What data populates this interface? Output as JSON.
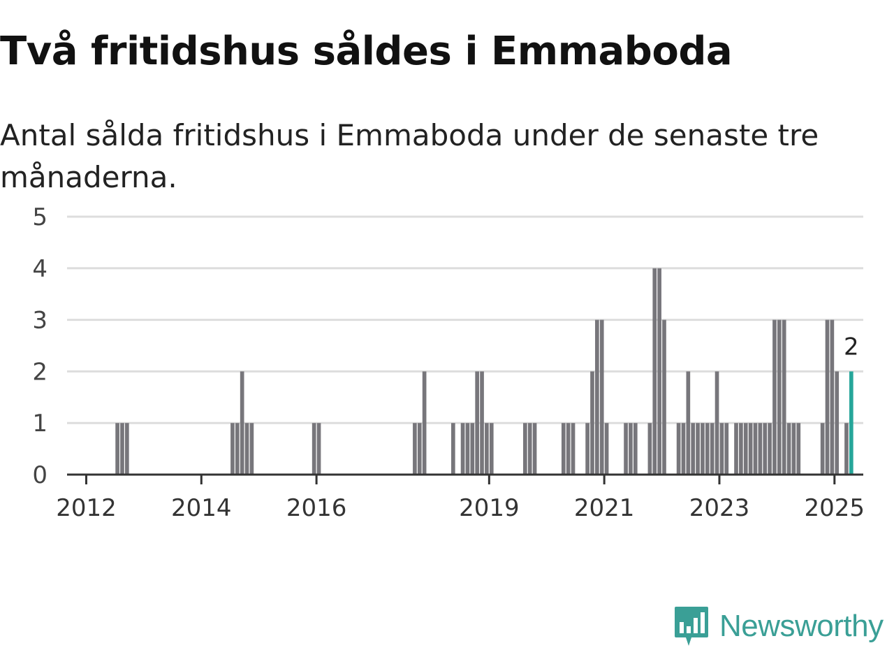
{
  "title": "Två fritidshus såldes i Emmaboda",
  "subtitle": "Antal sålda fritidshus i Emmaboda under de senaste tre månaderna.",
  "brand": {
    "name": "Newsworthy",
    "icon": "newsworthy-logo-icon",
    "color": "#3a9f96"
  },
  "chart_data": {
    "type": "bar",
    "title": "Två fritidshus såldes i Emmaboda",
    "subtitle": "Antal sålda fritidshus i Emmaboda under de senaste tre månaderna.",
    "xlabel": "",
    "ylabel": "",
    "ylim": [
      0,
      5
    ],
    "yticks": [
      0,
      1,
      2,
      3,
      4,
      5
    ],
    "xlim": [
      "2011-09",
      "2025-07"
    ],
    "xticks": [
      {
        "label": "2012",
        "month": "2012-01"
      },
      {
        "label": "2014",
        "month": "2014-01"
      },
      {
        "label": "2016",
        "month": "2016-01"
      },
      {
        "label": "2019",
        "month": "2019-01"
      },
      {
        "label": "2021",
        "month": "2021-01"
      },
      {
        "label": "2023",
        "month": "2023-01"
      },
      {
        "label": "2025",
        "month": "2025-01"
      }
    ],
    "grid": true,
    "bar_color": "#77767b",
    "highlight_color": "#26a69a",
    "highlight_label": "2",
    "series": [
      {
        "values": [
          [
            "2012-07",
            1
          ],
          [
            "2012-08",
            1
          ],
          [
            "2012-09",
            1
          ],
          [
            "2014-07",
            1
          ],
          [
            "2014-08",
            1
          ],
          [
            "2014-09",
            2
          ],
          [
            "2014-10",
            1
          ],
          [
            "2014-11",
            1
          ],
          [
            "2015-12",
            1
          ],
          [
            "2016-01",
            1
          ],
          [
            "2017-09",
            1
          ],
          [
            "2017-10",
            1
          ],
          [
            "2017-11",
            2
          ],
          [
            "2018-05",
            1
          ],
          [
            "2018-07",
            1
          ],
          [
            "2018-08",
            1
          ],
          [
            "2018-09",
            1
          ],
          [
            "2018-10",
            2
          ],
          [
            "2018-11",
            2
          ],
          [
            "2018-12",
            1
          ],
          [
            "2019-01",
            1
          ],
          [
            "2019-08",
            1
          ],
          [
            "2019-09",
            1
          ],
          [
            "2019-10",
            1
          ],
          [
            "2020-04",
            1
          ],
          [
            "2020-05",
            1
          ],
          [
            "2020-06",
            1
          ],
          [
            "2020-09",
            1
          ],
          [
            "2020-10",
            2
          ],
          [
            "2020-11",
            3
          ],
          [
            "2020-12",
            3
          ],
          [
            "2021-01",
            1
          ],
          [
            "2021-05",
            1
          ],
          [
            "2021-06",
            1
          ],
          [
            "2021-07",
            1
          ],
          [
            "2021-10",
            1
          ],
          [
            "2021-11",
            4
          ],
          [
            "2021-12",
            4
          ],
          [
            "2022-01",
            3
          ],
          [
            "2022-04",
            1
          ],
          [
            "2022-05",
            1
          ],
          [
            "2022-06",
            2
          ],
          [
            "2022-07",
            1
          ],
          [
            "2022-08",
            1
          ],
          [
            "2022-09",
            1
          ],
          [
            "2022-10",
            1
          ],
          [
            "2022-11",
            1
          ],
          [
            "2022-12",
            2
          ],
          [
            "2023-01",
            1
          ],
          [
            "2023-02",
            1
          ],
          [
            "2023-04",
            1
          ],
          [
            "2023-05",
            1
          ],
          [
            "2023-06",
            1
          ],
          [
            "2023-07",
            1
          ],
          [
            "2023-08",
            1
          ],
          [
            "2023-09",
            1
          ],
          [
            "2023-10",
            1
          ],
          [
            "2023-11",
            1
          ],
          [
            "2023-12",
            3
          ],
          [
            "2024-01",
            3
          ],
          [
            "2024-02",
            3
          ],
          [
            "2024-03",
            1
          ],
          [
            "2024-04",
            1
          ],
          [
            "2024-05",
            1
          ],
          [
            "2024-10",
            1
          ],
          [
            "2024-11",
            3
          ],
          [
            "2024-12",
            3
          ],
          [
            "2025-01",
            2
          ],
          [
            "2025-03",
            1
          ],
          [
            "2025-04",
            2
          ]
        ]
      }
    ]
  }
}
